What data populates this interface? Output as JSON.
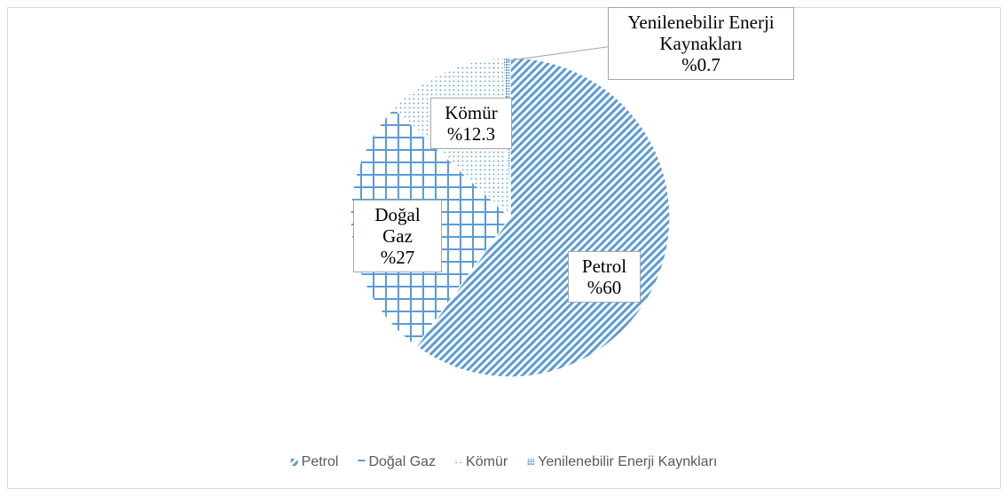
{
  "chart_data": {
    "type": "pie",
    "categories": [
      "Petrol",
      "Doğal Gaz",
      "Kömür",
      "Yenilenebilir Enerji Kaynakları"
    ],
    "values": [
      60,
      27,
      12.3,
      0.7
    ],
    "value_labels": [
      "%60",
      "%27",
      "%12.3",
      "%0.7"
    ],
    "legend_labels": [
      "Petrol",
      "Doğal Gaz",
      "Kömür",
      "Yenilenebilir Enerji Kaynkları"
    ],
    "colors": [
      "#5b9bd5",
      "#5b9bd5",
      "#5b9bd5",
      "#5b9bd5"
    ],
    "legend": "bottom"
  }
}
